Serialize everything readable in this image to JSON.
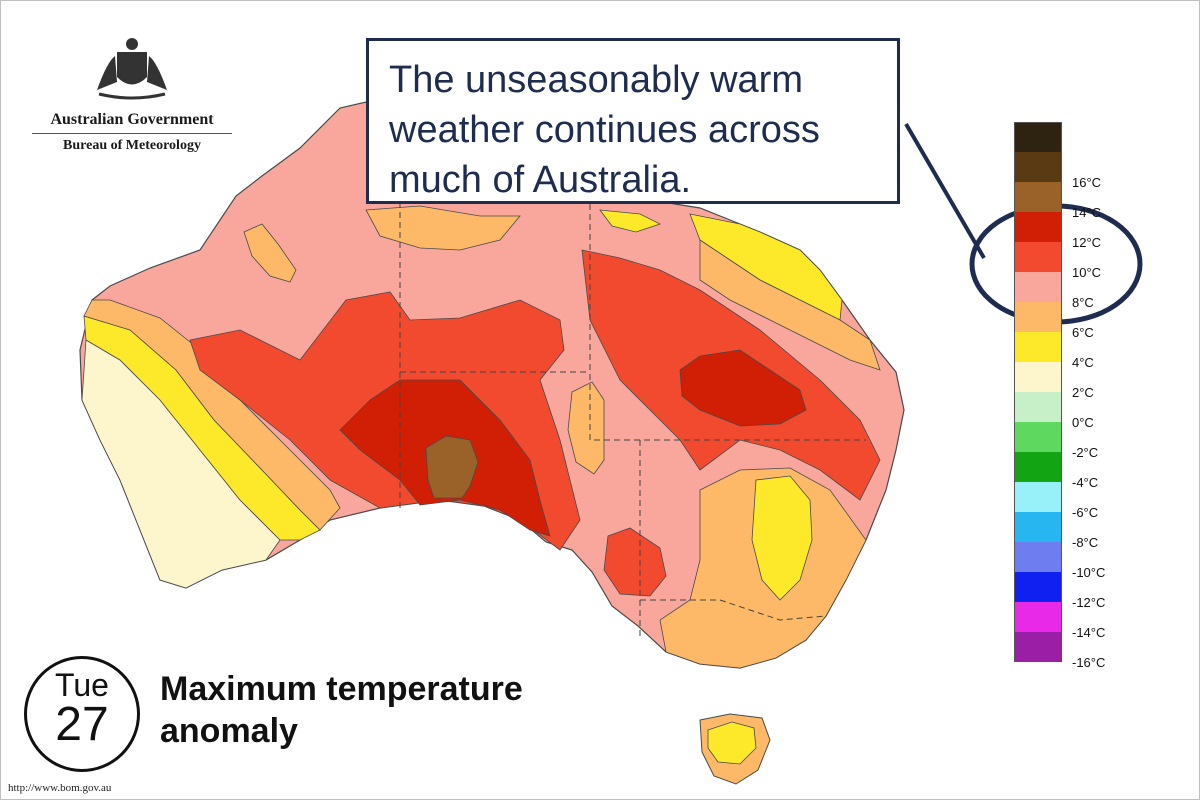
{
  "branding": {
    "government": "Australian Government",
    "bureau": "Bureau of Meteorology"
  },
  "callout": {
    "text": "The unseasonably warm weather continues across much of Australia."
  },
  "date_badge": {
    "day": "Tue",
    "date": "27"
  },
  "title": {
    "line1": "Maximum temperature",
    "line2": "anomaly"
  },
  "source_url": "http://www.bom.gov.au",
  "legend": {
    "unit": "°C",
    "bins": [
      {
        "label": "",
        "color": "#2d2310"
      },
      {
        "label": "16°C",
        "color": "#5a3a12"
      },
      {
        "label": "14°C",
        "color": "#9a6228"
      },
      {
        "label": "12°C",
        "color": "#d01f05"
      },
      {
        "label": "10°C",
        "color": "#f24a2e"
      },
      {
        "label": "8°C",
        "color": "#f9a79c"
      },
      {
        "label": "6°C",
        "color": "#fdb967"
      },
      {
        "label": "4°C",
        "color": "#fde82a"
      },
      {
        "label": "2°C",
        "color": "#fdf6cc"
      },
      {
        "label": "0°C",
        "color": "#c8f0c8"
      },
      {
        "label": "-2°C",
        "color": "#5ed85e"
      },
      {
        "label": "-4°C",
        "color": "#12a412"
      },
      {
        "label": "-6°C",
        "color": "#98f0f8"
      },
      {
        "label": "-8°C",
        "color": "#28b6f0"
      },
      {
        "label": "-10°C",
        "color": "#6e7ef0"
      },
      {
        "label": "-12°C",
        "color": "#1020f0"
      },
      {
        "label": "-14°C",
        "color": "#e82ae8"
      },
      {
        "label": "-16°C",
        "color": "#9a1ea6"
      }
    ]
  },
  "highlight": {
    "color": "#1e2d4f"
  }
}
